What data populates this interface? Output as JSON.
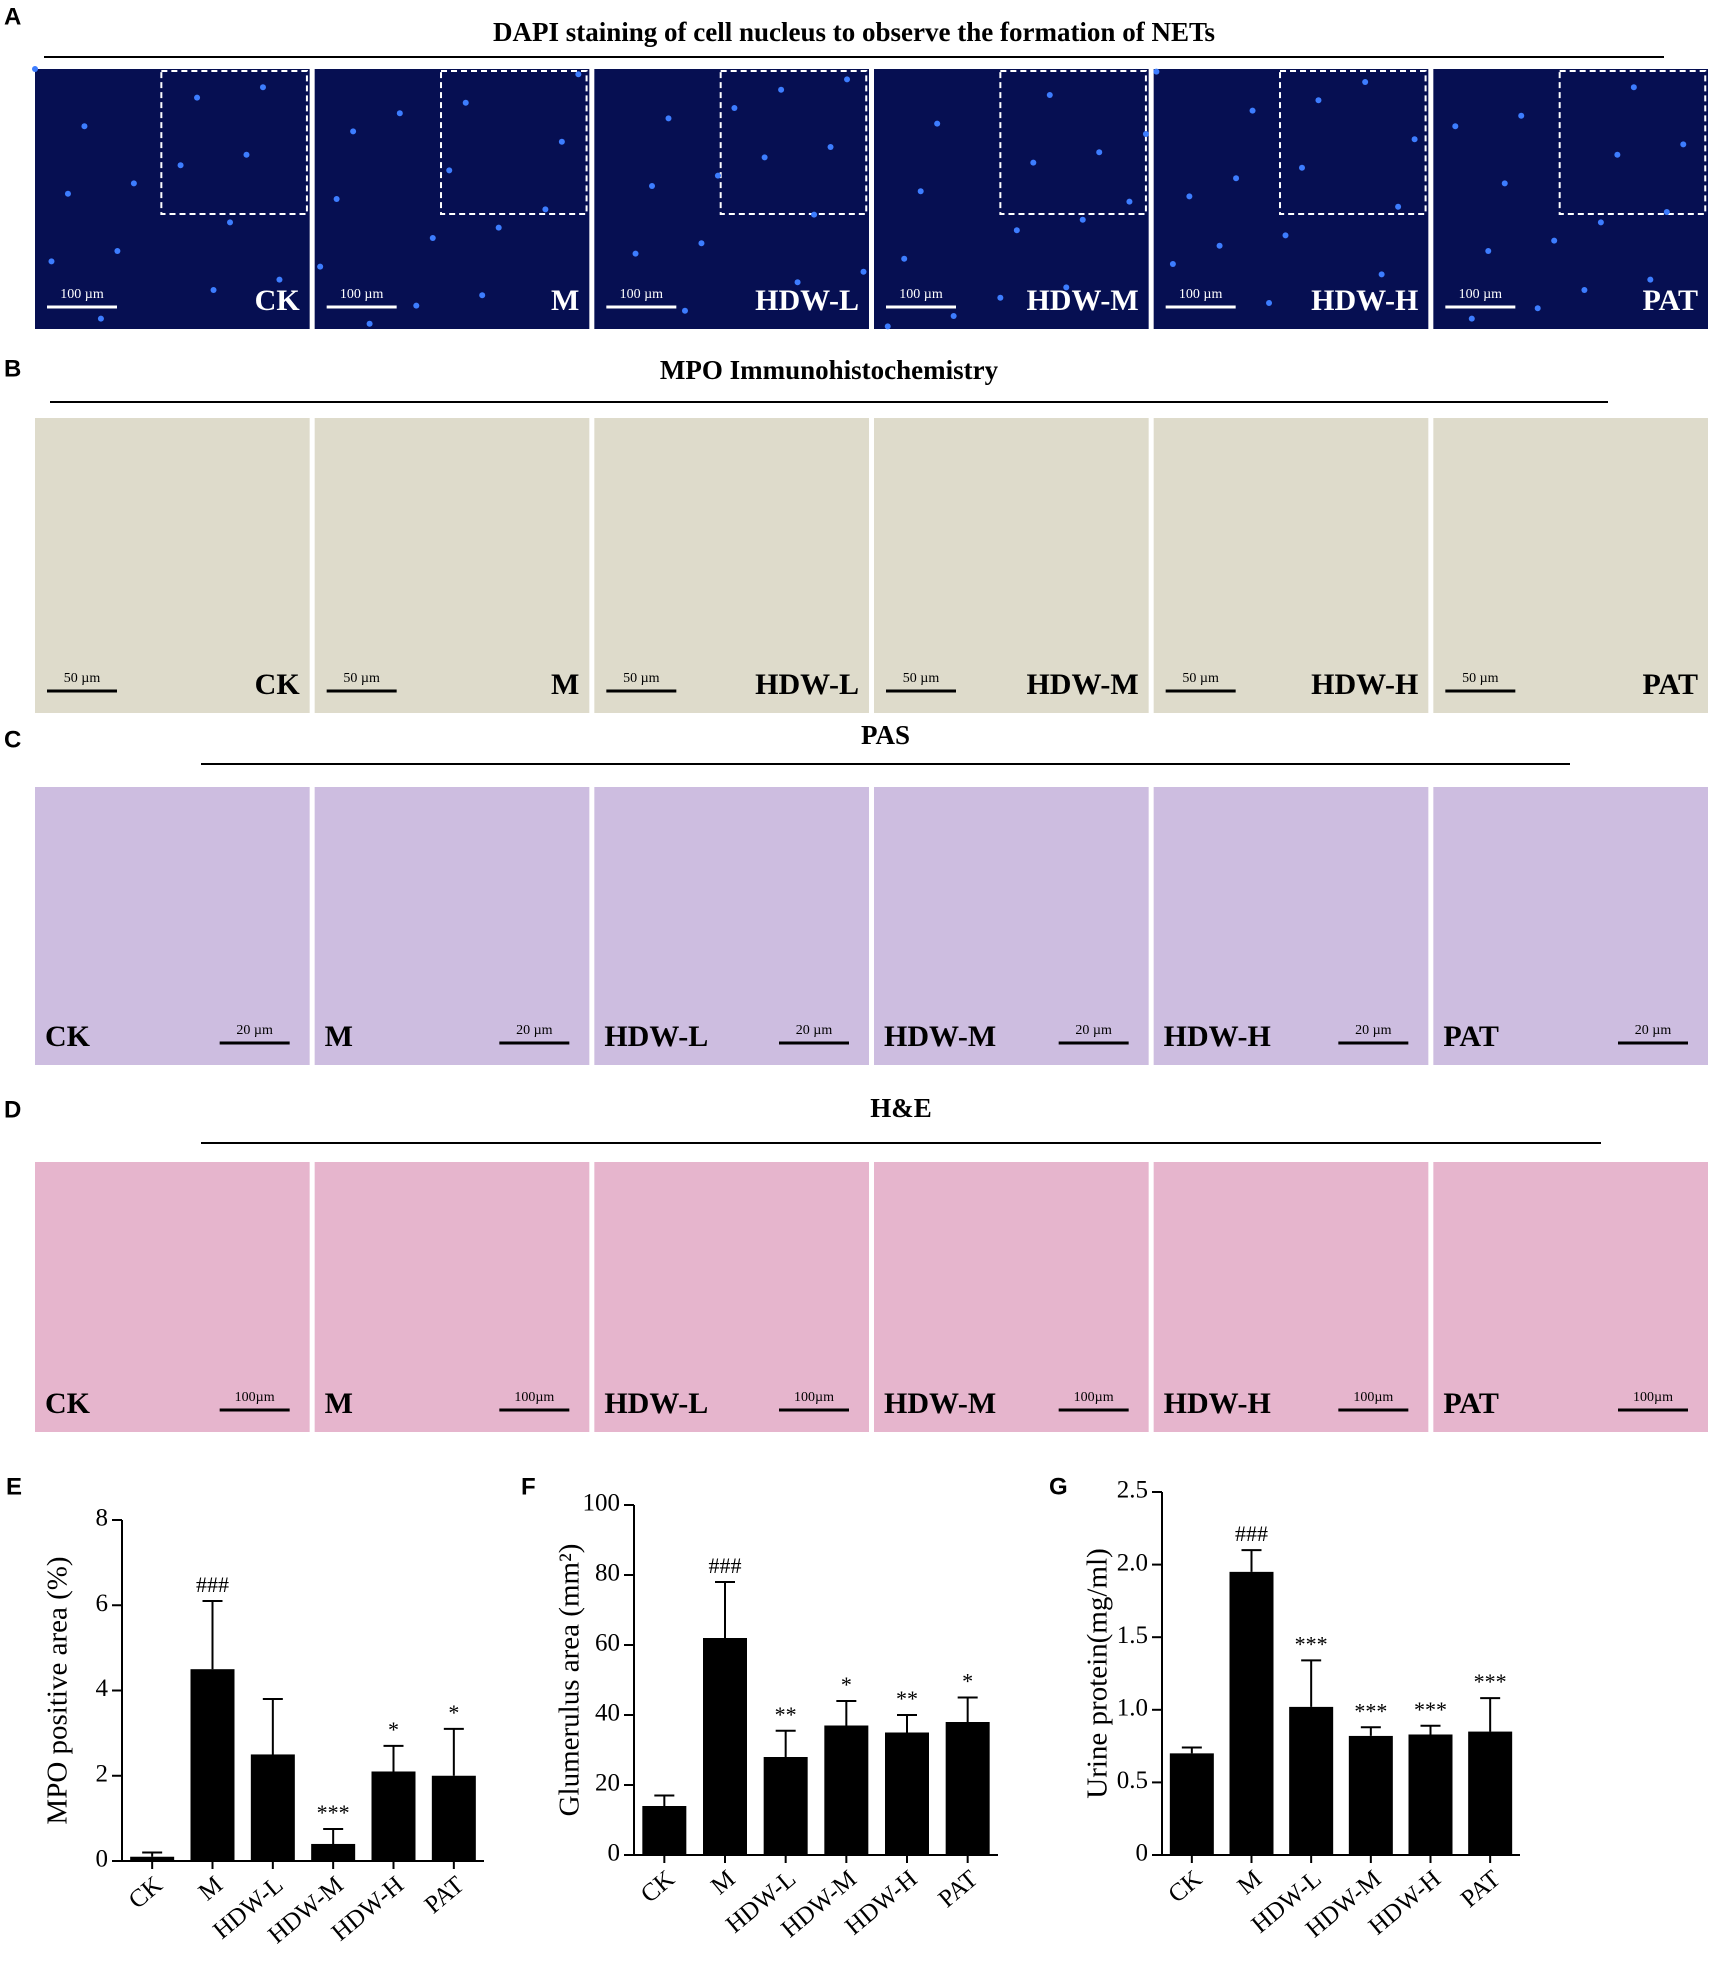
{
  "panels": {
    "A": {
      "letter": "A",
      "title": "DAPI staining of cell nucleus to observe the formation of NETs",
      "labels": [
        "CK",
        "M",
        "HDW-L",
        "HDW-M",
        "HDW-H",
        "PAT"
      ],
      "scale_bar": "100 µm"
    },
    "B": {
      "letter": "B",
      "title": "MPO Immunohistochemistry",
      "labels": [
        "CK",
        "M",
        "HDW-L",
        "HDW-M",
        "HDW-H",
        "PAT"
      ],
      "scale_bar": "50 µm"
    },
    "C": {
      "letter": "C",
      "title": "PAS",
      "labels": [
        "CK",
        "M",
        "HDW-L",
        "HDW-M",
        "HDW-H",
        "PAT"
      ],
      "scale_bar": "20 µm"
    },
    "D": {
      "letter": "D",
      "title": "H&E",
      "labels": [
        "CK",
        "M",
        "HDW-L",
        "HDW-M",
        "HDW-H",
        "PAT"
      ],
      "scale_bar": "100µm"
    }
  },
  "chart_data": [
    {
      "type": "bar",
      "letter": "E",
      "ylabel": "MPO positive area (%)",
      "color": "#000000",
      "categories": [
        "CK",
        "M",
        "HDW-L",
        "HDW-M",
        "HDW-H",
        "PAT"
      ],
      "values": [
        0.1,
        4.5,
        2.5,
        0.4,
        2.1,
        2.0
      ],
      "errors": [
        0.1,
        1.6,
        1.3,
        0.35,
        0.6,
        1.1
      ],
      "annotations": [
        null,
        "###",
        null,
        "***",
        "*",
        "*"
      ],
      "ylim": [
        0,
        8
      ],
      "yticks": [
        0,
        2,
        4,
        6,
        8
      ]
    },
    {
      "type": "bar",
      "letter": "F",
      "ylabel": "Glumerulus area (mm²)",
      "color": "#000000",
      "categories": [
        "CK",
        "M",
        "HDW-L",
        "HDW-M",
        "HDW-H",
        "PAT"
      ],
      "values": [
        14,
        62,
        28,
        37,
        35,
        38
      ],
      "errors": [
        3,
        16,
        7.5,
        7,
        5,
        7
      ],
      "annotations": [
        null,
        "###",
        "**",
        "*",
        "**",
        "*"
      ],
      "ylim": [
        0,
        100
      ],
      "yticks": [
        0,
        20,
        40,
        60,
        80,
        100
      ]
    },
    {
      "type": "bar",
      "letter": "G",
      "ylabel": "Urine protein(mg/ml)",
      "color": "#000000",
      "categories": [
        "CK",
        "M",
        "HDW-L",
        "HDW-M",
        "HDW-H",
        "PAT"
      ],
      "values": [
        0.7,
        1.95,
        1.02,
        0.82,
        0.83,
        0.85
      ],
      "errors": [
        0.04,
        0.15,
        0.32,
        0.06,
        0.06,
        0.23
      ],
      "annotations": [
        null,
        "###",
        "***",
        "***",
        "***",
        "***"
      ],
      "ylim": [
        0,
        2.5
      ],
      "yticks": [
        0,
        0.5,
        {
          "value": 1,
          "label": "1.0"
        },
        1.5,
        {
          "value": 2,
          "label": "2.0"
        },
        2.5
      ]
    }
  ]
}
